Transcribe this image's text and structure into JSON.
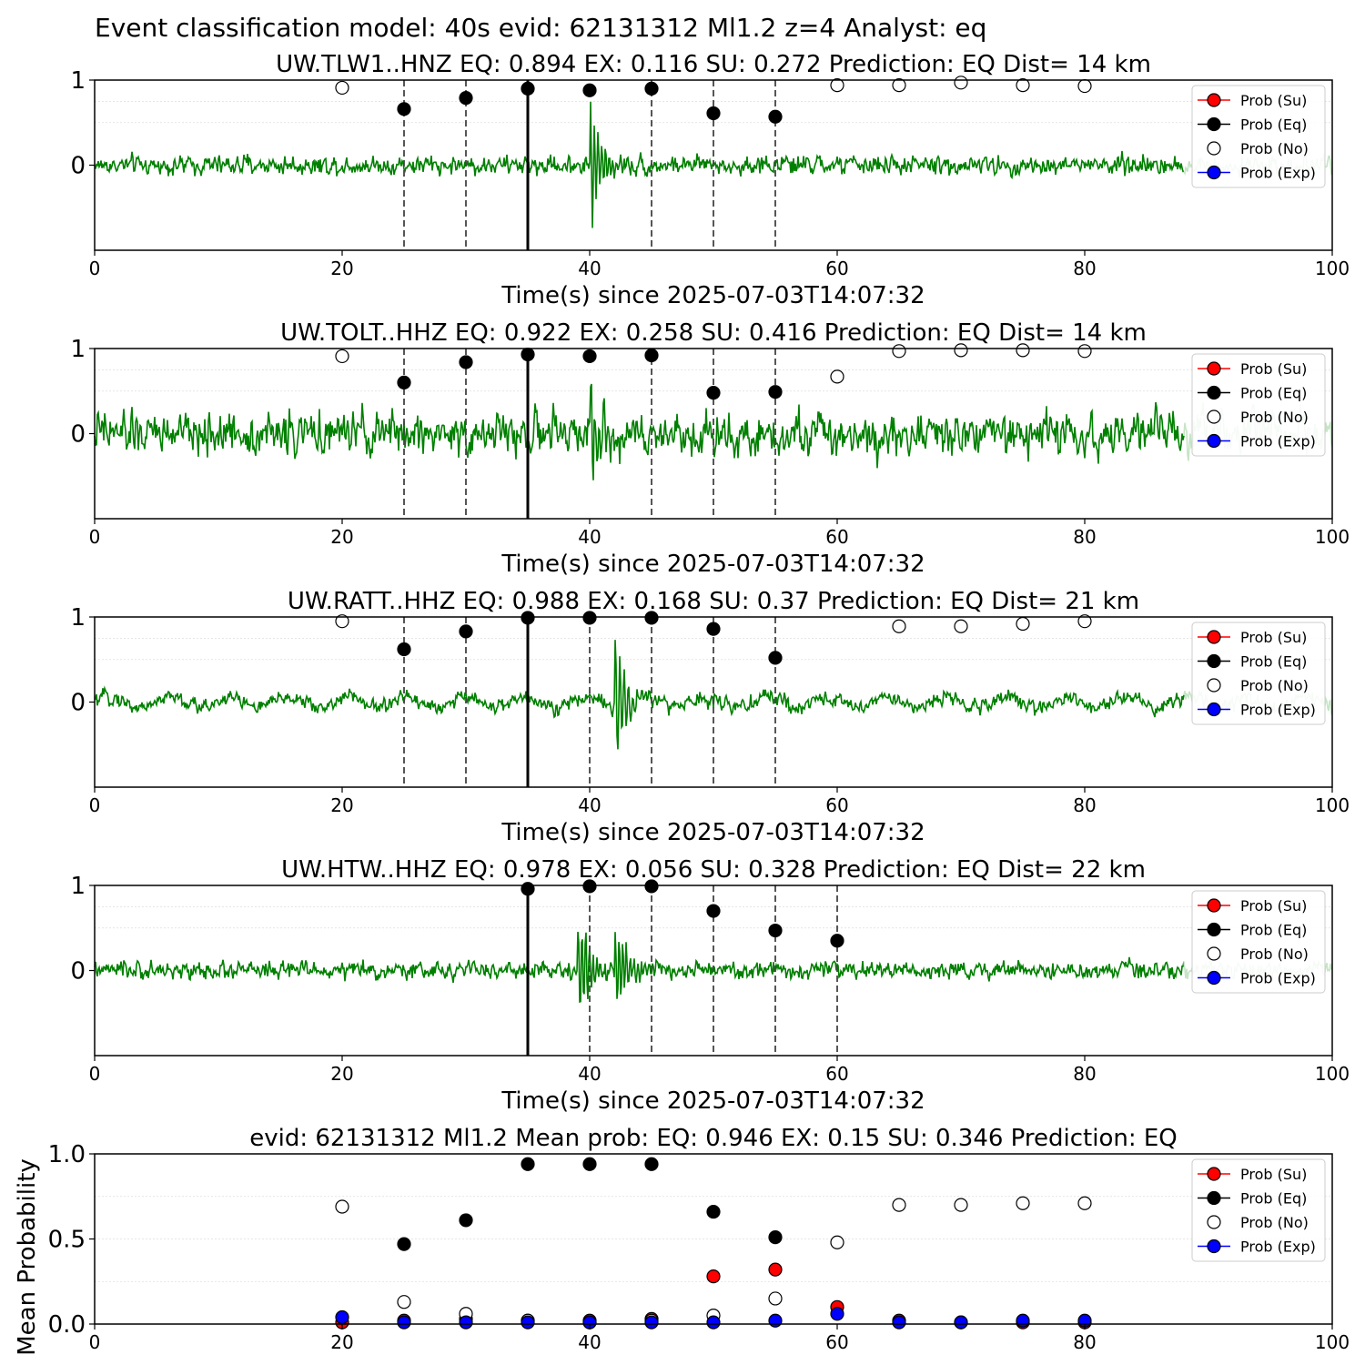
{
  "figure": {
    "suptitle": "Event classification model: 40s evid: 62131312 Ml1.2 z=4 Analyst: eq"
  },
  "legend_labels": [
    "Prob (Su)",
    "Prob (Eq)",
    "Prob (No)",
    "Prob (Exp)"
  ],
  "colors": {
    "waveform": "#008000",
    "waveform_tail": "#c6e4c6",
    "su": "#ff0000",
    "eq": "#000000",
    "no": "#ffffff",
    "exp": "#0000ff"
  },
  "chart_data": [
    {
      "type": "line",
      "title": "UW.TLW1..HNZ   EQ: 0.894  EX: 0.116  SU: 0.272   Prediction: EQ    Dist= 14 km",
      "xlabel": "Time(s) since 2025-07-03T14:07:32",
      "ylabel": "",
      "xlim": [
        0,
        100
      ],
      "ylim": [
        -1,
        1
      ],
      "yticks": [
        "1",
        "0"
      ],
      "xticks": [
        "0",
        "20",
        "40",
        "60",
        "80",
        "100"
      ],
      "arrival_time": 35,
      "window_marks": [
        25,
        30,
        45,
        50,
        55
      ],
      "waveform": {
        "noise": 0.1,
        "events": [
          {
            "t": 40,
            "amp": 0.95,
            "len": 4,
            "period": 0.3
          }
        ]
      },
      "series": [
        {
          "name": "Prob (Eq)",
          "x": [
            25,
            30,
            35,
            40,
            45,
            50,
            55
          ],
          "values": [
            0.66,
            0.79,
            0.9,
            0.88,
            0.9,
            0.61,
            0.57
          ]
        },
        {
          "name": "Prob (No)",
          "x": [
            20,
            60,
            65,
            70,
            75,
            80
          ],
          "values": [
            0.91,
            0.94,
            0.94,
            0.97,
            0.94,
            0.93
          ]
        }
      ],
      "legend": "upper-right"
    },
    {
      "type": "line",
      "title": "UW.TOLT..HHZ   EQ: 0.922  EX: 0.258  SU: 0.416   Prediction: EQ    Dist= 14 km",
      "xlabel": "Time(s) since 2025-07-03T14:07:32",
      "ylabel": "",
      "xlim": [
        0,
        100
      ],
      "ylim": [
        -1,
        1
      ],
      "yticks": [
        "1",
        "0"
      ],
      "xticks": [
        "0",
        "20",
        "40",
        "60",
        "80",
        "100"
      ],
      "arrival_time": 35,
      "window_marks": [
        25,
        30,
        45,
        50,
        55
      ],
      "waveform": {
        "noise": 0.22,
        "events": [
          {
            "t": 40,
            "amp": 0.75,
            "len": 5,
            "period": 0.35
          }
        ]
      },
      "series": [
        {
          "name": "Prob (Eq)",
          "x": [
            25,
            30,
            35,
            40,
            45,
            50,
            55
          ],
          "values": [
            0.6,
            0.84,
            0.93,
            0.91,
            0.92,
            0.48,
            0.49
          ]
        },
        {
          "name": "Prob (No)",
          "x": [
            20,
            60,
            65,
            70,
            75,
            80
          ],
          "values": [
            0.91,
            0.67,
            0.97,
            0.98,
            0.98,
            0.97
          ]
        }
      ],
      "legend": "upper-right"
    },
    {
      "type": "line",
      "title": "UW.RATT..HHZ   EQ: 0.988  EX: 0.168  SU: 0.37   Prediction: EQ    Dist= 21 km",
      "xlabel": "Time(s) since 2025-07-03T14:07:32",
      "ylabel": "",
      "xlim": [
        0,
        100
      ],
      "ylim": [
        -1,
        1
      ],
      "yticks": [
        "1",
        "0"
      ],
      "xticks": [
        "0",
        "20",
        "40",
        "60",
        "80",
        "100"
      ],
      "arrival_time": 35,
      "window_marks": [
        25,
        30,
        40,
        45,
        50,
        55
      ],
      "waveform": {
        "noise": 0.08,
        "swell": 0.1,
        "events": [
          {
            "t": 42,
            "amp": 0.95,
            "len": 5,
            "period": 0.35
          }
        ]
      },
      "series": [
        {
          "name": "Prob (Eq)",
          "x": [
            25,
            30,
            35,
            40,
            45,
            50,
            55
          ],
          "values": [
            0.62,
            0.83,
            0.99,
            0.99,
            0.99,
            0.86,
            0.52
          ]
        },
        {
          "name": "Prob (No)",
          "x": [
            20,
            65,
            70,
            75,
            80
          ],
          "values": [
            0.95,
            0.89,
            0.89,
            0.92,
            0.95
          ]
        }
      ],
      "legend": "upper-right"
    },
    {
      "type": "line",
      "title": "UW.HTW..HHZ   EQ: 0.978  EX: 0.056  SU: 0.328   Prediction: EQ    Dist= 22 km",
      "xlabel": "Time(s) since 2025-07-03T14:07:32",
      "ylabel": "",
      "xlim": [
        0,
        100
      ],
      "ylim": [
        -1,
        1
      ],
      "yticks": [
        "1",
        "0"
      ],
      "xticks": [
        "0",
        "20",
        "40",
        "60",
        "80",
        "100"
      ],
      "arrival_time": 35,
      "window_marks": [
        40,
        45,
        50,
        55,
        60
      ],
      "waveform": {
        "noise": 0.09,
        "events": [
          {
            "t": 39,
            "amp": 0.95,
            "len": 4,
            "period": 0.3
          },
          {
            "t": 42,
            "amp": 0.75,
            "len": 4,
            "period": 0.3
          }
        ]
      },
      "series": [
        {
          "name": "Prob (Eq)",
          "x": [
            35,
            40,
            45,
            50,
            55,
            60
          ],
          "values": [
            0.96,
            0.99,
            0.99,
            0.7,
            0.47,
            0.35
          ]
        }
      ],
      "legend": "upper-right"
    },
    {
      "type": "scatter",
      "title": "evid: 62131312  Ml1.2   Mean prob:   EQ: 0.946  EX: 0.15  SU: 0.346   Prediction: EQ",
      "xlabel": "",
      "ylabel": "Mean Probability",
      "xlim": [
        0,
        100
      ],
      "ylim": [
        0,
        1
      ],
      "yticks": [
        "0.0",
        "0.5",
        "1.0"
      ],
      "xticks": [
        "0",
        "20",
        "40",
        "60",
        "80",
        "100"
      ],
      "series": [
        {
          "name": "Prob (Su)",
          "x": [
            20,
            25,
            30,
            35,
            40,
            45,
            50,
            55,
            60,
            65,
            70,
            75,
            80
          ],
          "values": [
            0.01,
            0.02,
            0.03,
            0.02,
            0.02,
            0.03,
            0.28,
            0.32,
            0.1,
            0.02,
            0.01,
            0.01,
            0.01
          ]
        },
        {
          "name": "Prob (Eq)",
          "x": [
            25,
            30,
            35,
            40,
            45,
            50,
            55
          ],
          "values": [
            0.47,
            0.61,
            0.94,
            0.94,
            0.94,
            0.66,
            0.51
          ]
        },
        {
          "name": "Prob (No)",
          "x": [
            20,
            25,
            30,
            35,
            40,
            45,
            50,
            55,
            60,
            65,
            70,
            75,
            80
          ],
          "values": [
            0.69,
            0.13,
            0.06,
            0.02,
            0.01,
            0.02,
            0.05,
            0.15,
            0.48,
            0.7,
            0.7,
            0.71,
            0.71
          ]
        },
        {
          "name": "Prob (Exp)",
          "x": [
            20,
            25,
            30,
            35,
            40,
            45,
            50,
            55,
            60,
            65,
            70,
            75,
            80
          ],
          "values": [
            0.04,
            0.01,
            0.01,
            0.01,
            0.01,
            0.01,
            0.01,
            0.02,
            0.06,
            0.01,
            0.01,
            0.02,
            0.02
          ]
        }
      ],
      "legend": "upper-right"
    }
  ]
}
